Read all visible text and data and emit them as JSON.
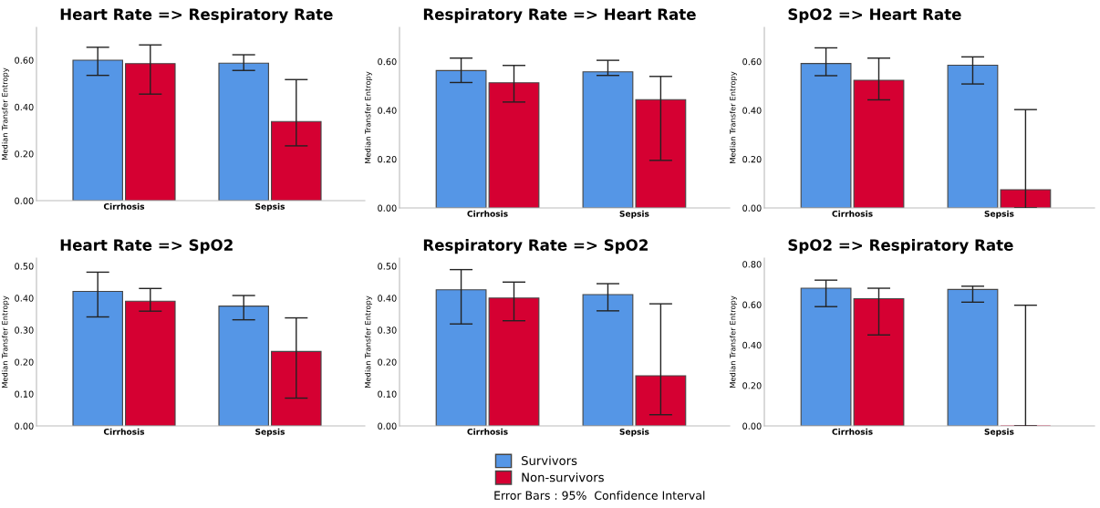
{
  "chart_data": [
    {
      "type": "bar",
      "title": "Heart Rate => Respiratory Rate",
      "ylabel": "Median Transfer Entropy",
      "categories": [
        "Cirrhosis",
        "Sepsis"
      ],
      "ylim": [
        0,
        0.74
      ],
      "yticks": [
        {
          "value": 0,
          "label": "0.00"
        },
        {
          "value": 0.2,
          "label": "0.20"
        },
        {
          "value": 0.4,
          "label": "0.40"
        },
        {
          "value": 0.6,
          "label": "0.60"
        }
      ],
      "grid": false,
      "legend": "bottom",
      "annotations": [
        "Error Bars : 95%  Confidence Interval"
      ],
      "series": [
        {
          "name": "Survivors",
          "color": "#5596e6",
          "values": [
            0.6,
            0.587
          ],
          "errors": [
            [
              0.535,
              0.655
            ],
            [
              0.556,
              0.623
            ]
          ]
        },
        {
          "name": "Non-survivors",
          "color": "#d50032",
          "values": [
            0.585,
            0.338
          ],
          "errors": [
            [
              0.455,
              0.665
            ],
            [
              0.234,
              0.517
            ]
          ]
        }
      ]
    },
    {
      "type": "bar",
      "title": "Respiratory Rate => Heart Rate",
      "ylabel": "Median Transfer Entropy",
      "categories": [
        "Cirrhosis",
        "Sepsis"
      ],
      "ylim": [
        0,
        0.74
      ],
      "yticks": [
        {
          "value": 0,
          "label": "0.00"
        },
        {
          "value": 0.2,
          "label": "0.20"
        },
        {
          "value": 0.4,
          "label": "0.40"
        },
        {
          "value": 0.6,
          "label": "0.60"
        }
      ],
      "grid": false,
      "series": [
        {
          "color": "#5596e6",
          "values": [
            0.563,
            0.558
          ],
          "errors": [
            [
              0.514,
              0.614
            ],
            [
              0.543,
              0.605
            ]
          ]
        },
        {
          "color": "#d50032",
          "values": [
            0.513,
            0.444
          ],
          "errors": [
            [
              0.434,
              0.584
            ],
            [
              0.195,
              0.539
            ]
          ]
        }
      ]
    },
    {
      "type": "bar",
      "title": "SpO2 => Heart Rate",
      "ylabel": "Median Transfer Entropy",
      "categories": [
        "Cirrhosis",
        "Sepsis"
      ],
      "ylim": [
        0,
        0.74
      ],
      "yticks": [
        {
          "value": 0,
          "label": "0.00"
        },
        {
          "value": 0.2,
          "label": "0.20"
        },
        {
          "value": 0.4,
          "label": "0.40"
        },
        {
          "value": 0.6,
          "label": "0.60"
        }
      ],
      "grid": false,
      "series": [
        {
          "color": "#5596e6",
          "values": [
            0.592,
            0.585
          ],
          "errors": [
            [
              0.542,
              0.656
            ],
            [
              0.508,
              0.619
            ]
          ]
        },
        {
          "color": "#d50032",
          "values": [
            0.523,
            0.075
          ],
          "errors": [
            [
              0.443,
              0.614
            ],
            [
              0.0,
              0.403
            ]
          ]
        }
      ]
    },
    {
      "type": "bar",
      "title": "Heart Rate => SpO2",
      "ylabel": "Median Transfer Entropy",
      "categories": [
        "Cirrhosis",
        "Sepsis"
      ],
      "ylim": [
        0,
        0.525
      ],
      "yticks": [
        {
          "value": 0,
          "label": "0.00"
        },
        {
          "value": 0.1,
          "label": "0.10"
        },
        {
          "value": 0.2,
          "label": "0.20"
        },
        {
          "value": 0.3,
          "label": "0.30"
        },
        {
          "value": 0.4,
          "label": "0.40"
        },
        {
          "value": 0.5,
          "label": "0.50"
        }
      ],
      "grid": false,
      "series": [
        {
          "color": "#5596e6",
          "values": [
            0.421,
            0.375
          ],
          "errors": [
            [
              0.341,
              0.481
            ],
            [
              0.332,
              0.408
            ]
          ]
        },
        {
          "color": "#d50032",
          "values": [
            0.39,
            0.233
          ],
          "errors": [
            [
              0.359,
              0.43
            ],
            [
              0.087,
              0.338
            ]
          ]
        }
      ]
    },
    {
      "type": "bar",
      "title": "Respiratory Rate => SpO2",
      "ylabel": "Median Transfer Entropy",
      "categories": [
        "Cirrhosis",
        "Sepsis"
      ],
      "ylim": [
        0,
        0.525
      ],
      "yticks": [
        {
          "value": 0,
          "label": "0.00"
        },
        {
          "value": 0.1,
          "label": "0.10"
        },
        {
          "value": 0.2,
          "label": "0.20"
        },
        {
          "value": 0.3,
          "label": "0.30"
        },
        {
          "value": 0.4,
          "label": "0.40"
        },
        {
          "value": 0.5,
          "label": "0.50"
        }
      ],
      "grid": false,
      "series": [
        {
          "color": "#5596e6",
          "values": [
            0.426,
            0.411
          ],
          "errors": [
            [
              0.319,
              0.489
            ],
            [
              0.36,
              0.445
            ]
          ]
        },
        {
          "color": "#d50032",
          "values": [
            0.4,
            0.157
          ],
          "errors": [
            [
              0.329,
              0.45
            ],
            [
              0.035,
              0.382
            ]
          ]
        }
      ]
    },
    {
      "type": "bar",
      "title": "SpO2 => Respiratory Rate",
      "ylabel": "Median Transfer Entropy",
      "categories": [
        "Cirrhosis",
        "Sepsis"
      ],
      "ylim": [
        0,
        0.83
      ],
      "yticks": [
        {
          "value": 0,
          "label": "0.00"
        },
        {
          "value": 0.2,
          "label": "0.20"
        },
        {
          "value": 0.4,
          "label": "0.40"
        },
        {
          "value": 0.6,
          "label": "0.60"
        },
        {
          "value": 0.8,
          "label": "0.80"
        }
      ],
      "grid": false,
      "series": [
        {
          "color": "#5596e6",
          "values": [
            0.681,
            0.675
          ],
          "errors": [
            [
              0.59,
              0.721
            ],
            [
              0.612,
              0.691
            ]
          ]
        },
        {
          "color": "#d50032",
          "values": [
            0.629,
            0.0
          ],
          "errors": [
            [
              0.45,
              0.681
            ],
            [
              0.0,
              0.597
            ]
          ]
        }
      ]
    }
  ]
}
